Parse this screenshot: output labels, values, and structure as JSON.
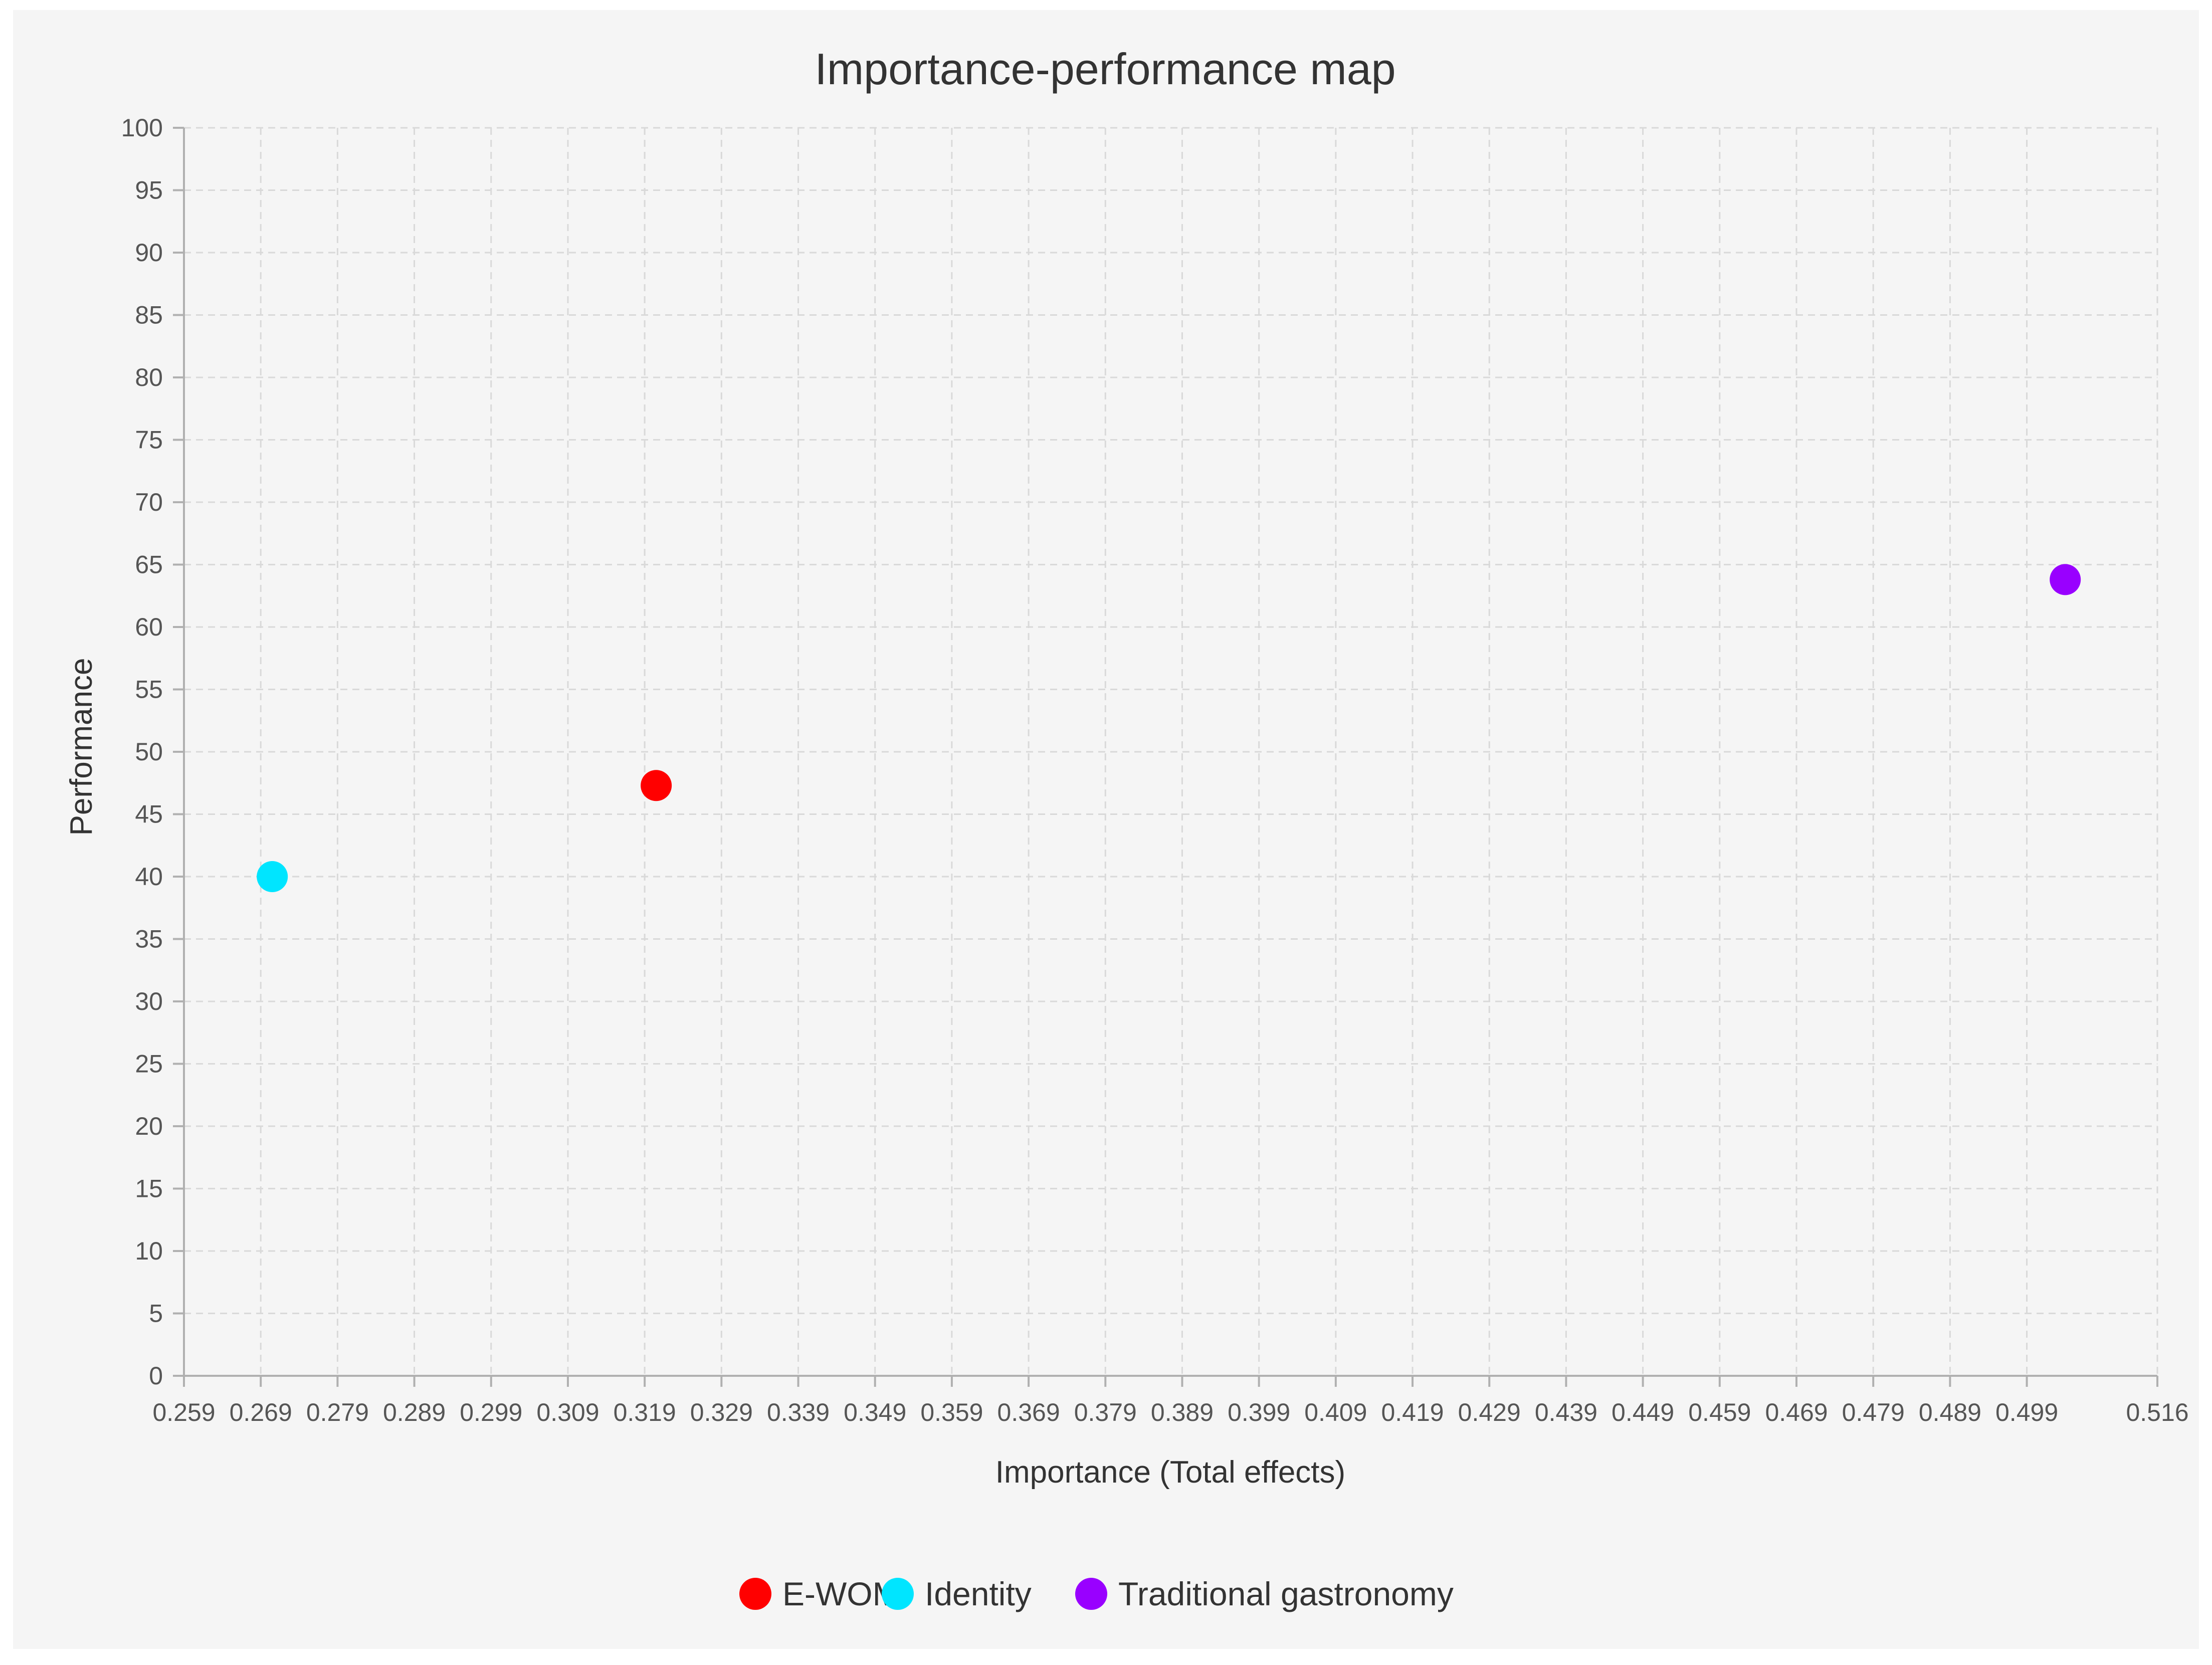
{
  "chart_data": {
    "type": "scatter",
    "title": "Importance-performance map",
    "xlabel": "Importance (Total effects)",
    "ylabel": "Performance",
    "xlim": [
      0.259,
      0.516
    ],
    "ylim": [
      0,
      100
    ],
    "x_ticks": [
      "0.259",
      "0.269",
      "0.279",
      "0.289",
      "0.299",
      "0.309",
      "0.319",
      "0.329",
      "0.339",
      "0.349",
      "0.359",
      "0.369",
      "0.379",
      "0.389",
      "0.399",
      "0.409",
      "0.419",
      "0.429",
      "0.439",
      "0.449",
      "0.459",
      "0.469",
      "0.479",
      "0.489",
      "0.499",
      "0.516"
    ],
    "y_ticks": [
      "0",
      "5",
      "10",
      "15",
      "20",
      "25",
      "30",
      "35",
      "40",
      "45",
      "50",
      "55",
      "60",
      "65",
      "70",
      "75",
      "80",
      "85",
      "90",
      "95",
      "100"
    ],
    "grid": true,
    "legend_position": "bottom",
    "series": [
      {
        "name": "E-WOM",
        "color": "#ff0000",
        "x": 0.3205,
        "y": 47.3
      },
      {
        "name": "Identity",
        "color": "#00e5ff",
        "x": 0.2705,
        "y": 40.0
      },
      {
        "name": "Traditional gastronomy",
        "color": "#9900ff",
        "x": 0.504,
        "y": 63.8
      }
    ]
  }
}
